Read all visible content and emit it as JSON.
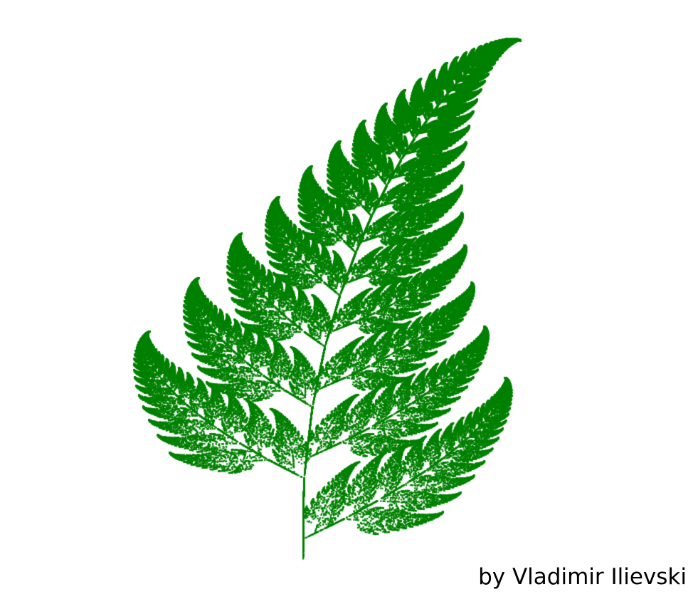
{
  "image": {
    "subject": "fern-fractal",
    "background_color": "#ffffff",
    "fern_color": "#008000"
  },
  "credit": {
    "text": "by Vladimir Ilievski"
  }
}
